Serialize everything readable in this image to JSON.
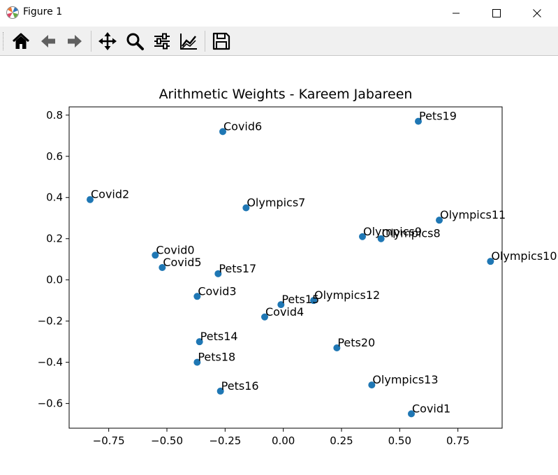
{
  "window": {
    "title": "Figure 1",
    "minimize_label": "Minimize",
    "maximize_label": "Maximize",
    "close_label": "Close"
  },
  "toolbar": {
    "items": [
      {
        "name": "home-button",
        "icon": "home-icon"
      },
      {
        "name": "back-button",
        "icon": "arrow-left-icon"
      },
      {
        "name": "forward-button",
        "icon": "arrow-right-icon"
      },
      {
        "name": "pan-button",
        "icon": "move-icon"
      },
      {
        "name": "zoom-button",
        "icon": "magnifier-icon"
      },
      {
        "name": "configure-subplots-button",
        "icon": "sliders-icon"
      },
      {
        "name": "edit-axis-button",
        "icon": "line-chart-icon"
      },
      {
        "name": "save-button",
        "icon": "floppy-disk-icon"
      }
    ]
  },
  "chart_data": {
    "type": "scatter",
    "title": "Arithmetic Weights - Kareem Jabareen",
    "xlabel": "",
    "ylabel": "",
    "xlim": [
      -0.92,
      0.94
    ],
    "ylim": [
      -0.72,
      0.84
    ],
    "xticks": [
      -0.75,
      -0.5,
      -0.25,
      0.0,
      0.25,
      0.5,
      0.75
    ],
    "xtick_labels": [
      "−0.75",
      "−0.50",
      "−0.25",
      "0.00",
      "0.25",
      "0.50",
      "0.75"
    ],
    "yticks": [
      -0.6,
      -0.4,
      -0.2,
      0.0,
      0.2,
      0.4,
      0.6,
      0.8
    ],
    "ytick_labels": [
      "−0.6",
      "−0.4",
      "−0.2",
      "0.0",
      "0.2",
      "0.4",
      "0.6",
      "0.8"
    ],
    "grid": false,
    "marker_color": "#1f77b4",
    "points": [
      {
        "label": "Covid0",
        "x": -0.55,
        "y": 0.12
      },
      {
        "label": "Covid1",
        "x": 0.55,
        "y": -0.65
      },
      {
        "label": "Covid2",
        "x": -0.83,
        "y": 0.39
      },
      {
        "label": "Covid3",
        "x": -0.37,
        "y": -0.08
      },
      {
        "label": "Covid4",
        "x": -0.08,
        "y": -0.18
      },
      {
        "label": "Covid5",
        "x": -0.52,
        "y": 0.06
      },
      {
        "label": "Covid6",
        "x": -0.26,
        "y": 0.72
      },
      {
        "label": "Olympics7",
        "x": -0.16,
        "y": 0.35
      },
      {
        "label": "Olympics8",
        "x": 0.42,
        "y": 0.2
      },
      {
        "label": "Olympics9",
        "x": 0.34,
        "y": 0.21
      },
      {
        "label": "Olympics10",
        "x": 0.89,
        "y": 0.09
      },
      {
        "label": "Olympics11",
        "x": 0.67,
        "y": 0.29
      },
      {
        "label": "Olympics12",
        "x": 0.13,
        "y": -0.1
      },
      {
        "label": "Olympics13",
        "x": 0.38,
        "y": -0.51
      },
      {
        "label": "Pets14",
        "x": -0.36,
        "y": -0.3
      },
      {
        "label": "Pets15",
        "x": -0.01,
        "y": -0.12
      },
      {
        "label": "Pets16",
        "x": -0.27,
        "y": -0.54
      },
      {
        "label": "Pets17",
        "x": -0.28,
        "y": 0.03
      },
      {
        "label": "Pets18",
        "x": -0.37,
        "y": -0.4
      },
      {
        "label": "Pets19",
        "x": 0.58,
        "y": 0.77
      },
      {
        "label": "Pets20",
        "x": 0.23,
        "y": -0.33
      }
    ]
  }
}
